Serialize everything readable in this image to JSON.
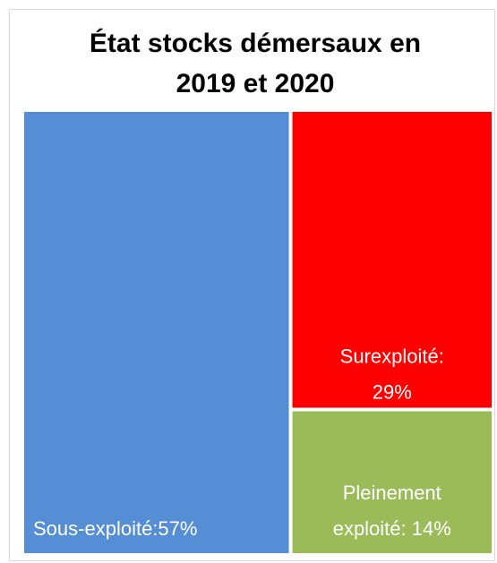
{
  "chart_data": {
    "type": "treemap",
    "title_lines": [
      "État stocks démersaux en",
      "2019 et 2020"
    ],
    "categories": [
      "Sous-exploité:",
      "Surexploité:",
      "Pleinement exploité:"
    ],
    "values": [
      57,
      29,
      14
    ],
    "value_labels": [
      "57%",
      "29%",
      "14%"
    ],
    "colors": [
      "#558ed5",
      "#ff0000",
      "#9bbb59"
    ]
  }
}
